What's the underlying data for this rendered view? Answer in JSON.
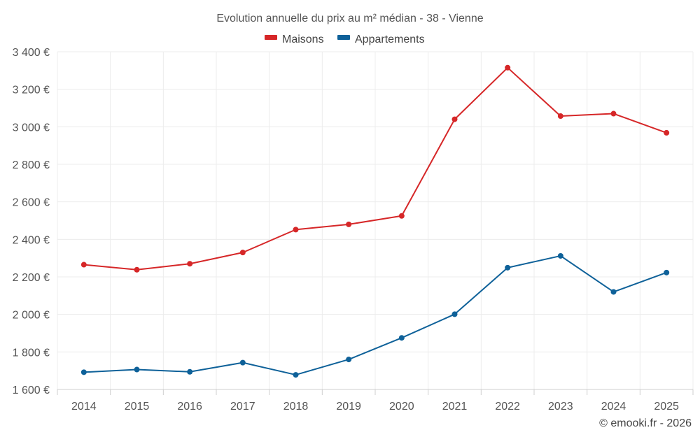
{
  "chart_data": {
    "type": "line",
    "title": "Evolution annuelle du prix au m² médian - 38 - Vienne",
    "categories": [
      "2014",
      "2015",
      "2016",
      "2017",
      "2018",
      "2019",
      "2020",
      "2021",
      "2022",
      "2023",
      "2024",
      "2025"
    ],
    "series": [
      {
        "name": "Maisons",
        "color": "#d62728",
        "values": [
          2265,
          2238,
          2270,
          2330,
          2452,
          2480,
          2525,
          3040,
          3315,
          3057,
          3070,
          2968
        ]
      },
      {
        "name": "Appartements",
        "color": "#0e6199",
        "values": [
          1692,
          1706,
          1694,
          1743,
          1678,
          1760,
          1875,
          2001,
          2249,
          2312,
          2120,
          2223
        ]
      }
    ],
    "ylim": [
      1600,
      3400
    ],
    "yticks": [
      1600,
      1800,
      2000,
      2200,
      2400,
      2600,
      2800,
      3000,
      3200,
      3400
    ],
    "ytick_labels": [
      "1 600 €",
      "1 800 €",
      "2 000 €",
      "2 200 €",
      "2 400 €",
      "2 600 €",
      "2 800 €",
      "3 000 €",
      "3 200 €",
      "3 400 €"
    ],
    "xlabel": "",
    "ylabel": "",
    "grid": true,
    "legend_position": "top-center"
  },
  "credit": "© emooki.fr - 2026"
}
